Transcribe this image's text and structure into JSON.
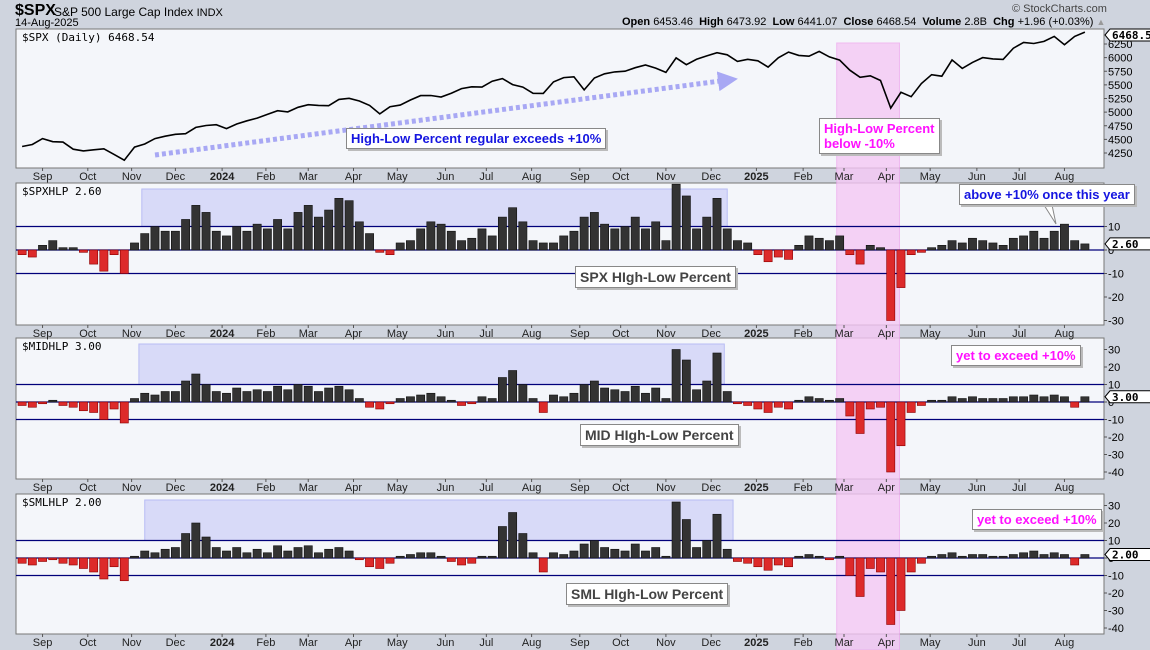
{
  "header": {
    "symbol": "$SPX",
    "name": "S&P 500 Large Cap Index",
    "exchange": "INDX",
    "date": "14-Aug-2025",
    "copyright": "© StockCharts.com",
    "open_label": "Open",
    "open": "6453.46",
    "high_label": "High",
    "high": "6473.92",
    "low_label": "Low",
    "low": "6441.07",
    "close_label": "Close",
    "close": "6468.54",
    "volume_label": "Volume",
    "volume": "2.8B",
    "chg_label": "Chg",
    "chg": "+1.96 (+0.03%)",
    "up_arrow_icon": "triangle-up-icon"
  },
  "colors": {
    "up_bar": "#333333",
    "down_bar": "#dd2a2a",
    "line": "#000000",
    "guide": "#00007a",
    "pink": "#f5c8f5",
    "blue_zone": "#d8daf8",
    "plot_bg": "#f4f6fa"
  },
  "annotations": {
    "spx_regular": "High-Low Percent regular exceeds +10%",
    "below_1": "High-Low Percent",
    "below_2": "below -10%",
    "above_once": "above +10% once this year",
    "spx_label": "SPX HIgh-Low Percent",
    "mid_yet": "yet to exceed +10%",
    "mid_label": "MID HIgh-Low Percent",
    "sml_yet": "yet to exceed +10%",
    "sml_label": "SML HIgh-Low Percent"
  },
  "chart_data": {
    "type": "line+bar",
    "x_start": "2023-08-18",
    "x_step_days": 7,
    "x_ticks": [
      {
        "date": "2023-09-01",
        "label": "Sep"
      },
      {
        "date": "2023-10-02",
        "label": "Oct"
      },
      {
        "date": "2023-11-01",
        "label": "Nov"
      },
      {
        "date": "2023-12-01",
        "label": "Dec"
      },
      {
        "date": "2024-01-02",
        "label": "2024",
        "bold": true
      },
      {
        "date": "2024-02-01",
        "label": "Feb"
      },
      {
        "date": "2024-03-01",
        "label": "Mar"
      },
      {
        "date": "2024-04-01",
        "label": "Apr"
      },
      {
        "date": "2024-05-01",
        "label": "May"
      },
      {
        "date": "2024-06-03",
        "label": "Jun"
      },
      {
        "date": "2024-07-01",
        "label": "Jul"
      },
      {
        "date": "2024-08-01",
        "label": "Aug"
      },
      {
        "date": "2024-09-03",
        "label": "Sep"
      },
      {
        "date": "2024-10-01",
        "label": "Oct"
      },
      {
        "date": "2024-11-01",
        "label": "Nov"
      },
      {
        "date": "2024-12-02",
        "label": "Dec"
      },
      {
        "date": "2025-01-02",
        "label": "2025",
        "bold": true
      },
      {
        "date": "2025-02-03",
        "label": "Feb"
      },
      {
        "date": "2025-03-03",
        "label": "Mar"
      },
      {
        "date": "2025-04-01",
        "label": "Apr"
      },
      {
        "date": "2025-05-01",
        "label": "May"
      },
      {
        "date": "2025-06-02",
        "label": "Jun"
      },
      {
        "date": "2025-07-01",
        "label": "Jul"
      },
      {
        "date": "2025-08-01",
        "label": "Aug"
      }
    ],
    "highlight_pink": {
      "from": "2025-02-26",
      "to": "2025-04-10"
    },
    "panels": [
      {
        "id": "spx",
        "kind": "line",
        "legend": "$SPX (Daily) 6468.54",
        "last": "6468.54",
        "yticks": [
          6250,
          6000,
          5750,
          5500,
          5250,
          5000,
          4750,
          4500,
          4250
        ],
        "values": [
          4370,
          4406,
          4515,
          4457,
          4450,
          4320,
          4288,
          4308,
          4327,
          4224,
          4117,
          4358,
          4415,
          4514,
          4559,
          4594,
          4604,
          4719,
          4754,
          4770,
          4697,
          4783,
          4840,
          4891,
          4959,
          5027,
          5005,
          5089,
          5137,
          5124,
          5117,
          5234,
          5254,
          5204,
          5123,
          4967,
          5100,
          5128,
          5223,
          5303,
          5305,
          5278,
          5347,
          5431,
          5465,
          5460,
          5567,
          5615,
          5505,
          5459,
          5346,
          5344,
          5554,
          5634,
          5648,
          5408,
          5626,
          5703,
          5738,
          5751,
          5815,
          5865,
          5808,
          5729,
          5995,
          5870,
          5969,
          6032,
          6090,
          6051,
          5930,
          5970,
          5942,
          5827,
          5997,
          6101,
          6041,
          6026,
          6115,
          6013,
          5955,
          5770,
          5639,
          5667,
          5581,
          5074,
          5363,
          5283,
          5525,
          5687,
          5660,
          5958,
          5803,
          5912,
          6000,
          5977,
          5968,
          6173,
          6279,
          6260,
          6297,
          6389,
          6238,
          6389,
          6469
        ]
      },
      {
        "id": "spxhlp",
        "kind": "bar",
        "legend": "$SPXHLP 2.60",
        "last": "2.60",
        "yticks": [
          10,
          0,
          -10,
          -20,
          -30
        ],
        "guides": [
          10,
          0,
          -10
        ],
        "blue_zone": {
          "from": "2023-11-08",
          "to": "2024-12-13",
          "low": 10
        },
        "values": [
          -2,
          -3,
          2,
          4,
          1,
          1,
          -1,
          -6,
          -9,
          -2,
          -10,
          3,
          7,
          10,
          8,
          8,
          13,
          19,
          16,
          8,
          6,
          10,
          8,
          11,
          9,
          13,
          9,
          16,
          19,
          14,
          17,
          22,
          21,
          12,
          7,
          -1,
          -2,
          3,
          4,
          9,
          12,
          11,
          8,
          4,
          5,
          9,
          6,
          14,
          18,
          12,
          4,
          3,
          3,
          6,
          8,
          14,
          16,
          11,
          9,
          10,
          14,
          9,
          12,
          4,
          28,
          23,
          9,
          14,
          22,
          9,
          4,
          3,
          -2,
          -5,
          -3,
          -4,
          2,
          6,
          5,
          4,
          6,
          -2,
          -6,
          2,
          1,
          -30,
          -16,
          -2,
          -1,
          1,
          2,
          4,
          3,
          5,
          4,
          3,
          2,
          5,
          6,
          8,
          5,
          8,
          11,
          4,
          2.6
        ]
      },
      {
        "id": "midhlp",
        "kind": "bar",
        "legend": "$MIDHLP 3.00",
        "last": "3.00",
        "yticks": [
          30,
          20,
          10,
          0,
          -10,
          -20,
          -30,
          -40
        ],
        "guides": [
          10,
          0,
          -10
        ],
        "blue_zone": {
          "from": "2023-11-06",
          "to": "2024-12-11",
          "low": 10
        },
        "values": [
          -2,
          -3,
          -1,
          1,
          -2,
          -3,
          -5,
          -6,
          -10,
          -4,
          -12,
          2,
          5,
          4,
          6,
          6,
          12,
          16,
          10,
          6,
          5,
          8,
          6,
          7,
          6,
          9,
          7,
          10,
          9,
          6,
          8,
          9,
          7,
          2,
          -3,
          -4,
          -1,
          2,
          3,
          4,
          5,
          3,
          1,
          -2,
          -1,
          3,
          2,
          14,
          18,
          10,
          2,
          -6,
          4,
          3,
          5,
          10,
          12,
          8,
          7,
          6,
          9,
          5,
          8,
          2,
          30,
          24,
          7,
          12,
          28,
          6,
          -1,
          -2,
          -4,
          -6,
          -3,
          -4,
          1,
          3,
          2,
          1,
          2,
          -8,
          -18,
          -4,
          -3,
          -40,
          -25,
          -6,
          -2,
          1,
          1,
          3,
          2,
          3,
          2,
          2,
          2,
          3,
          3,
          4,
          3,
          4,
          3,
          -3,
          3
        ]
      },
      {
        "id": "smlhlp",
        "kind": "bar",
        "legend": "$SMLHLP 2.00",
        "last": "2.00",
        "yticks": [
          30,
          20,
          10,
          0,
          -10,
          -20,
          -30,
          -40
        ],
        "guides": [
          10,
          0,
          -10
        ],
        "blue_zone": {
          "from": "2023-11-10",
          "to": "2024-12-17",
          "low": 10
        },
        "values": [
          -3,
          -4,
          -2,
          -1,
          -3,
          -4,
          -6,
          -8,
          -12,
          -5,
          -13,
          1,
          4,
          3,
          5,
          6,
          14,
          20,
          12,
          6,
          4,
          6,
          3,
          5,
          3,
          7,
          4,
          6,
          7,
          3,
          5,
          6,
          4,
          -1,
          -5,
          -6,
          -3,
          1,
          2,
          3,
          3,
          1,
          -2,
          -4,
          -3,
          1,
          1,
          18,
          26,
          14,
          3,
          -8,
          3,
          2,
          4,
          8,
          10,
          6,
          5,
          4,
          8,
          4,
          6,
          1,
          32,
          22,
          6,
          10,
          25,
          5,
          -2,
          -3,
          -5,
          -7,
          -4,
          -5,
          1,
          2,
          1,
          -1,
          1,
          -10,
          -22,
          -6,
          -8,
          -38,
          -30,
          -8,
          -3,
          1,
          2,
          3,
          1,
          2,
          2,
          1,
          1,
          2,
          3,
          4,
          2,
          3,
          2,
          -4,
          2
        ]
      }
    ]
  }
}
